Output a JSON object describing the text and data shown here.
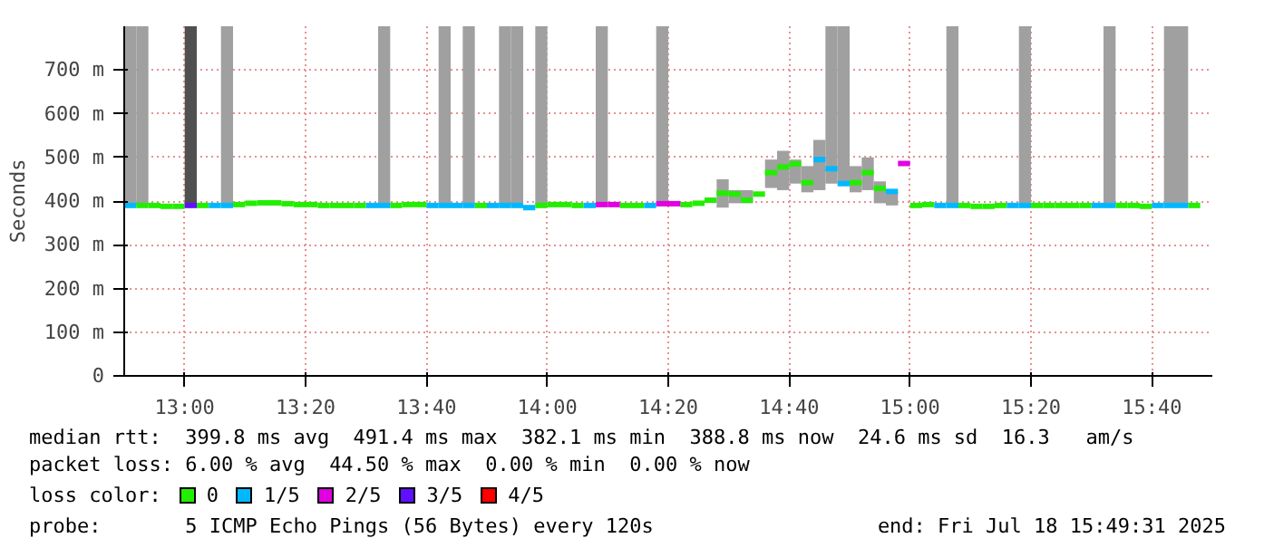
{
  "chart_data": {
    "type": "scatter",
    "ylabel": "Seconds",
    "x": [
      12.85,
      12.8833,
      12.9167,
      12.95,
      12.9833,
      13.0167,
      13.05,
      13.0833,
      13.1167,
      13.15,
      13.1833,
      13.2167,
      13.25,
      13.2833,
      13.3167,
      13.35,
      13.3833,
      13.4167,
      13.45,
      13.4833,
      13.5167,
      13.55,
      13.5833,
      13.6167,
      13.65,
      13.6833,
      13.7167,
      13.75,
      13.7833,
      13.8167,
      13.85,
      13.8833,
      13.9167,
      13.95,
      13.9833,
      14.0167,
      14.05,
      14.0833,
      14.1167,
      14.15,
      14.1833,
      14.2167,
      14.25,
      14.2833,
      14.3167,
      14.35,
      14.3833,
      14.4167,
      14.45,
      14.4833,
      14.5167,
      14.55,
      14.5833,
      14.6167,
      14.65,
      14.6833,
      14.7167,
      14.75,
      14.7833,
      14.8167,
      14.85,
      14.8833,
      14.9167,
      14.95,
      14.9833,
      15.0167,
      15.05,
      15.0833,
      15.1167,
      15.15,
      15.1833,
      15.2167,
      15.25,
      15.2833,
      15.3167,
      15.35,
      15.3833,
      15.4167,
      15.45,
      15.4833,
      15.5167,
      15.55,
      15.5833,
      15.6167,
      15.65,
      15.6833,
      15.7167,
      15.75,
      15.7833
    ],
    "series": [
      {
        "type": "bar",
        "color": "#a0a0a0",
        "colors": [
          "#a0a0a0",
          "#a0a0a0",
          "#a0a0a0",
          "#a0a0a0",
          "#a0a0a0",
          "#505050",
          "#a0a0a0",
          "#a0a0a0",
          "#a0a0a0",
          "#a0a0a0",
          "#a0a0a0",
          "#a0a0a0",
          "#a0a0a0",
          "#a0a0a0",
          "#a0a0a0",
          "#a0a0a0",
          "#a0a0a0",
          "#a0a0a0",
          "#a0a0a0",
          "#a0a0a0",
          "#a0a0a0",
          "#a0a0a0",
          "#a0a0a0",
          "#a0a0a0",
          "#a0a0a0",
          "#a0a0a0",
          "#a0a0a0",
          "#a0a0a0",
          "#a0a0a0",
          "#a0a0a0",
          "#a0a0a0",
          "#a0a0a0",
          "#a0a0a0",
          "#a0a0a0",
          "#a0a0a0",
          "#a0a0a0",
          "#a0a0a0",
          "#a0a0a0",
          "#a0a0a0",
          "#a0a0a0",
          "#a0a0a0",
          "#a0a0a0",
          "#a0a0a0",
          "#a0a0a0",
          "#a0a0a0",
          "#a0a0a0",
          "#a0a0a0",
          "#a0a0a0",
          "#a0a0a0",
          "#a0a0a0",
          "#a0a0a0",
          "#a0a0a0",
          "#a0a0a0",
          "#a0a0a0",
          "#a0a0a0",
          "#a0a0a0",
          "#a0a0a0",
          "#a0a0a0",
          "#a0a0a0",
          "#a0a0a0",
          "#a0a0a0",
          "#a0a0a0",
          "#a0a0a0",
          "#a0a0a0",
          "#a0a0a0",
          "#a0a0a0",
          "#a0a0a0",
          "#a0a0a0",
          "#a0a0a0",
          "#a0a0a0",
          "#a0a0a0",
          "#a0a0a0",
          "#a0a0a0",
          "#a0a0a0",
          "#a0a0a0",
          "#a0a0a0",
          "#a0a0a0",
          "#a0a0a0",
          "#a0a0a0",
          "#a0a0a0",
          "#a0a0a0",
          "#a0a0a0",
          "#a0a0a0",
          "#a0a0a0",
          "#a0a0a0",
          "#a0a0a0",
          "#a0a0a0",
          "#a0a0a0",
          "#a0a0a0"
        ],
        "base": [
          390,
          390,
          null,
          null,
          null,
          390,
          null,
          null,
          390,
          null,
          null,
          null,
          null,
          null,
          null,
          null,
          null,
          null,
          null,
          null,
          null,
          390,
          null,
          null,
          null,
          null,
          390,
          null,
          390,
          null,
          null,
          390,
          390,
          null,
          390,
          null,
          null,
          null,
          null,
          390,
          null,
          null,
          null,
          null,
          390,
          null,
          null,
          null,
          null,
          385,
          395,
          395,
          null,
          430,
          425,
          440,
          420,
          425,
          440,
          440,
          420,
          425,
          395,
          390,
          null,
          null,
          null,
          null,
          390,
          null,
          null,
          null,
          null,
          null,
          390,
          null,
          null,
          null,
          null,
          null,
          null,
          390,
          null,
          null,
          null,
          null,
          390,
          390,
          null
        ],
        "values": [
          410,
          410,
          null,
          null,
          null,
          410,
          null,
          null,
          410,
          null,
          null,
          null,
          null,
          null,
          null,
          null,
          null,
          null,
          null,
          null,
          null,
          410,
          null,
          null,
          null,
          null,
          410,
          null,
          410,
          null,
          null,
          410,
          410,
          null,
          410,
          null,
          null,
          null,
          null,
          410,
          null,
          null,
          null,
          null,
          410,
          null,
          null,
          null,
          null,
          65,
          30,
          30,
          null,
          65,
          90,
          55,
          60,
          115,
          360,
          360,
          60,
          75,
          50,
          30,
          null,
          null,
          null,
          null,
          410,
          null,
          null,
          null,
          null,
          null,
          410,
          null,
          null,
          null,
          null,
          null,
          null,
          410,
          null,
          null,
          null,
          null,
          410,
          410,
          null
        ]
      },
      {
        "name": "0",
        "color": "#22ee00",
        "values": [
          null,
          390,
          390,
          388,
          388,
          null,
          390,
          null,
          null,
          392,
          395,
          396,
          396,
          394,
          392,
          392,
          390,
          390,
          390,
          390,
          null,
          null,
          390,
          392,
          392,
          null,
          null,
          null,
          null,
          390,
          null,
          null,
          null,
          null,
          390,
          392,
          392,
          390,
          null,
          null,
          null,
          390,
          390,
          null,
          null,
          null,
          392,
          395,
          402,
          418,
          416,
          402,
          416,
          465,
          478,
          485,
          442,
          null,
          null,
          null,
          442,
          465,
          429,
          null,
          null,
          390,
          392,
          null,
          null,
          390,
          388,
          388,
          390,
          null,
          null,
          390,
          390,
          390,
          390,
          390,
          null,
          null,
          390,
          390,
          388,
          null,
          null,
          null,
          390
        ]
      },
      {
        "name": "1/5",
        "color": "#00b8ff",
        "values": [
          390,
          null,
          null,
          null,
          null,
          null,
          null,
          390,
          390,
          null,
          null,
          null,
          null,
          null,
          null,
          null,
          null,
          null,
          null,
          null,
          390,
          390,
          null,
          null,
          null,
          390,
          390,
          390,
          390,
          null,
          390,
          390,
          390,
          385,
          null,
          null,
          null,
          null,
          390,
          null,
          null,
          null,
          null,
          390,
          null,
          null,
          null,
          null,
          null,
          null,
          null,
          null,
          null,
          null,
          null,
          null,
          null,
          495,
          474,
          440,
          null,
          null,
          null,
          422,
          null,
          null,
          null,
          390,
          390,
          null,
          null,
          null,
          null,
          390,
          390,
          null,
          null,
          null,
          null,
          null,
          390,
          390,
          null,
          null,
          null,
          390,
          390,
          390,
          null
        ]
      },
      {
        "name": "2/5",
        "color": "#e000e0",
        "values": [
          null,
          null,
          null,
          null,
          null,
          null,
          null,
          null,
          null,
          null,
          null,
          null,
          null,
          null,
          null,
          null,
          null,
          null,
          null,
          null,
          null,
          null,
          null,
          null,
          null,
          null,
          null,
          null,
          null,
          null,
          null,
          null,
          null,
          null,
          null,
          null,
          null,
          null,
          null,
          392,
          392,
          null,
          null,
          null,
          394,
          394,
          null,
          null,
          null,
          null,
          null,
          null,
          null,
          null,
          null,
          null,
          null,
          null,
          null,
          null,
          null,
          null,
          null,
          null,
          486,
          null,
          null,
          null,
          null,
          null,
          null,
          null,
          null,
          null,
          null,
          null,
          null,
          null,
          null,
          null,
          null,
          null,
          null,
          null,
          null,
          null,
          null,
          null,
          null
        ]
      },
      {
        "name": "3/5",
        "color": "#6010ff",
        "values": [
          null,
          null,
          null,
          null,
          null,
          390,
          null,
          null,
          null,
          null,
          null,
          null,
          null,
          null,
          null,
          null,
          null,
          null,
          null,
          null,
          null,
          null,
          null,
          null,
          null,
          null,
          null,
          null,
          null,
          null,
          null,
          null,
          null,
          null,
          null,
          null,
          null,
          null,
          null,
          null,
          null,
          null,
          null,
          null,
          null,
          null,
          null,
          null,
          null,
          null,
          null,
          null,
          null,
          null,
          null,
          null,
          null,
          null,
          null,
          null,
          null,
          null,
          null,
          null,
          null,
          null,
          null,
          null,
          null,
          null,
          null,
          null,
          null,
          null,
          null,
          null,
          null,
          null,
          null,
          null,
          null,
          null,
          null,
          null,
          null,
          null,
          null,
          null,
          null
        ]
      },
      {
        "name": "4/5",
        "color": "#ff0000",
        "values": [
          null,
          null,
          null,
          null,
          null,
          null,
          null,
          null,
          null,
          null,
          null,
          null,
          null,
          null,
          null,
          null,
          null,
          null,
          null,
          null,
          null,
          null,
          null,
          null,
          null,
          null,
          null,
          null,
          null,
          null,
          null,
          null,
          null,
          null,
          null,
          null,
          null,
          null,
          null,
          null,
          null,
          null,
          null,
          null,
          null,
          null,
          null,
          null,
          null,
          null,
          null,
          null,
          null,
          null,
          null,
          null,
          null,
          null,
          null,
          null,
          null,
          null,
          null,
          null,
          null,
          null,
          null,
          null,
          null,
          null,
          null,
          null,
          null,
          null,
          null,
          null,
          null,
          null,
          null,
          null,
          null,
          null,
          null,
          null,
          null,
          null,
          null,
          null,
          null
        ]
      }
    ],
    "xlim": [
      12.8333,
      15.8333
    ],
    "xticks": [
      {
        "value": 13.0,
        "label": "13:00"
      },
      {
        "value": 13.3333,
        "label": "13:20"
      },
      {
        "value": 13.6667,
        "label": "13:40"
      },
      {
        "value": 14.0,
        "label": "14:00"
      },
      {
        "value": 14.3333,
        "label": "14:20"
      },
      {
        "value": 14.6667,
        "label": "14:40"
      },
      {
        "value": 15.0,
        "label": "15:00"
      },
      {
        "value": 15.3333,
        "label": "15:20"
      },
      {
        "value": 15.6667,
        "label": "15:40"
      }
    ],
    "ylim": [
      0,
      800
    ],
    "yticks": [
      0,
      {
        "value": 100,
        "label": "100 m"
      },
      {
        "value": 200,
        "label": "200 m"
      },
      {
        "value": 300,
        "label": "300 m"
      },
      {
        "value": 400,
        "label": "400 m"
      },
      {
        "value": 500,
        "label": "500 m"
      },
      {
        "value": 600,
        "label": "600 m"
      },
      {
        "value": 700,
        "label": "700 m"
      }
    ],
    "grid": true,
    "marker": "square",
    "legend": "bottom",
    "legend_title": "loss color:",
    "annotations": [
      "median rtt:  399.8 ms avg  491.4 ms max  382.1 ms min  388.8 ms now  24.6 ms sd  16.3   am/s",
      "packet loss: 6.00 % avg  44.50 % max  0.00 % min  0.00 % now",
      "probe:       5 ICMP Echo Pings (56 Bytes) every 120s",
      "end: Fri Jul 18 15:49:31 2025"
    ]
  }
}
